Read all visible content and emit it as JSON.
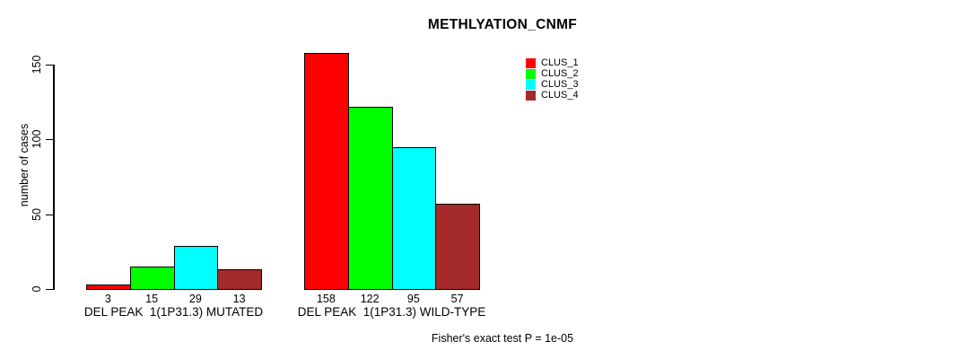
{
  "chart_data": {
    "type": "bar",
    "title": "METHLYATION_CNMF",
    "ylabel": "number of cases",
    "xlabel": "",
    "yticks": [
      0,
      50,
      100,
      150
    ],
    "ylim": [
      0,
      158
    ],
    "grid": false,
    "legend_position": "top-right",
    "background": "#ffffff",
    "legend": [
      {
        "label": "CLUS_1",
        "color": "#ff0000"
      },
      {
        "label": "CLUS_2",
        "color": "#00ff00"
      },
      {
        "label": "CLUS_3",
        "color": "#00ffff"
      },
      {
        "label": "CLUS_4",
        "color": "#a52a2a"
      }
    ],
    "categories": [
      "DEL PEAK  1(1P31.3) MUTATED",
      "DEL PEAK  1(1P31.3) WILD-TYPE"
    ],
    "groups": [
      {
        "label": "DEL PEAK  1(1P31.3) MUTATED",
        "values": [
          3,
          15,
          29,
          13
        ]
      },
      {
        "label": "DEL PEAK  1(1P31.3) WILD-TYPE",
        "values": [
          158,
          122,
          95,
          57
        ]
      }
    ],
    "series": [
      {
        "name": "CLUS_1",
        "color": "#ff0000",
        "values": [
          3,
          158
        ]
      },
      {
        "name": "CLUS_2",
        "color": "#00ff00",
        "values": [
          15,
          122
        ]
      },
      {
        "name": "CLUS_3",
        "color": "#00ffff",
        "values": [
          29,
          95
        ]
      },
      {
        "name": "CLUS_4",
        "color": "#a52a2a",
        "values": [
          13,
          57
        ]
      }
    ],
    "footnote": "Fisher's exact test P = 1e-05"
  }
}
